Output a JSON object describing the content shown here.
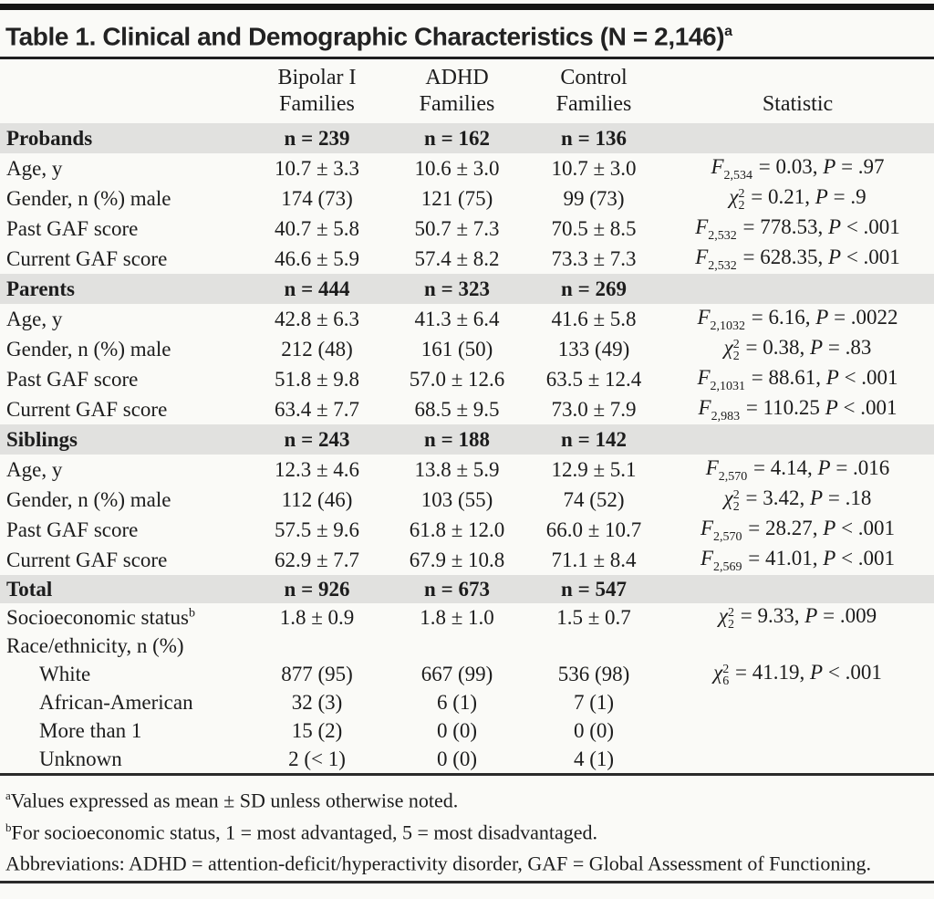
{
  "title": {
    "text": "Table 1. Clinical and Demographic Characteristics (N = 2,146)",
    "sup": "a"
  },
  "header": {
    "col1": [
      "Bipolar I",
      "Families"
    ],
    "col2": [
      "ADHD",
      "Families"
    ],
    "col3": [
      "Control",
      "Families"
    ],
    "col4": "Statistic"
  },
  "sections": [
    {
      "header": {
        "label": "Probands",
        "n1": "n = 239",
        "n2": "n = 162",
        "n3": "n = 136"
      },
      "rows": [
        {
          "label": "Age, y",
          "v1": "10.7 ± 3.3",
          "v2": "10.6 ± 3.0",
          "v3": "10.7 ± 3.0",
          "stat": {
            "sym": "F",
            "sup": "",
            "sub": "2,534",
            "mid": " = 0.03, ",
            "p": "P",
            "pv": " = .97"
          }
        },
        {
          "label": "Gender, n (%) male",
          "v1": "174 (73)",
          "v2": "121 (75)",
          "v3": "99 (73)",
          "stat": {
            "sym": "χ",
            "sup": "2",
            "sub": "2",
            "mid": " = 0.21, ",
            "p": "P",
            "pv": " = .9"
          }
        },
        {
          "label": "Past GAF score",
          "v1": "40.7 ± 5.8",
          "v2": "50.7 ± 7.3",
          "v3": "70.5 ± 8.5",
          "stat": {
            "sym": "F",
            "sup": "",
            "sub": "2,532",
            "mid": " = 778.53, ",
            "p": "P",
            "pv": " < .001"
          }
        },
        {
          "label": "Current GAF score",
          "v1": "46.6 ± 5.9",
          "v2": "57.4 ± 8.2",
          "v3": "73.3 ± 7.3",
          "stat": {
            "sym": "F",
            "sup": "",
            "sub": "2,532",
            "mid": " = 628.35, ",
            "p": "P",
            "pv": " < .001"
          }
        }
      ]
    },
    {
      "header": {
        "label": "Parents",
        "n1": "n = 444",
        "n2": "n = 323",
        "n3": "n = 269"
      },
      "rows": [
        {
          "label": "Age, y",
          "v1": "42.8 ± 6.3",
          "v2": "41.3 ± 6.4",
          "v3": "41.6 ± 5.8",
          "stat": {
            "sym": "F",
            "sup": "",
            "sub": "2,1032",
            "mid": " = 6.16, ",
            "p": "P",
            "pv": " = .0022"
          }
        },
        {
          "label": "Gender, n (%) male",
          "v1": "212 (48)",
          "v2": "161 (50)",
          "v3": "133 (49)",
          "stat": {
            "sym": "χ",
            "sup": "2",
            "sub": "2",
            "mid": " = 0.38, ",
            "p": "P",
            "pv": " = .83"
          }
        },
        {
          "label": "Past GAF score",
          "v1": "51.8 ± 9.8",
          "v2": "57.0 ± 12.6",
          "v3": "63.5 ± 12.4",
          "stat": {
            "sym": "F",
            "sup": "",
            "sub": "2,1031",
            "mid": " = 88.61, ",
            "p": "P",
            "pv": " < .001"
          }
        },
        {
          "label": "Current GAF score",
          "v1": "63.4 ± 7.7",
          "v2": "68.5 ± 9.5",
          "v3": "73.0 ± 7.9",
          "stat": {
            "sym": "F",
            "sup": "",
            "sub": "2,983",
            "mid": " = 110.25 ",
            "p": "P",
            "pv": " < .001"
          }
        }
      ]
    },
    {
      "header": {
        "label": "Siblings",
        "n1": "n = 243",
        "n2": "n = 188",
        "n3": "n = 142"
      },
      "rows": [
        {
          "label": "Age, y",
          "v1": "12.3 ± 4.6",
          "v2": "13.8 ± 5.9",
          "v3": "12.9 ± 5.1",
          "stat": {
            "sym": "F",
            "sup": "",
            "sub": "2,570",
            "mid": " = 4.14, ",
            "p": "P",
            "pv": " = .016"
          }
        },
        {
          "label": "Gender, n (%) male",
          "v1": "112 (46)",
          "v2": "103 (55)",
          "v3": "74 (52)",
          "stat": {
            "sym": "χ",
            "sup": "2",
            "sub": "2",
            "mid": " = 3.42, ",
            "p": "P",
            "pv": " = .18"
          }
        },
        {
          "label": "Past GAF score",
          "v1": "57.5 ± 9.6",
          "v2": "61.8 ± 12.0",
          "v3": "66.0 ± 10.7",
          "stat": {
            "sym": "F",
            "sup": "",
            "sub": "2,570",
            "mid": " = 28.27, ",
            "p": "P",
            "pv": " < .001"
          }
        },
        {
          "label": "Current GAF score",
          "v1": "62.9 ± 7.7",
          "v2": "67.9 ± 10.8",
          "v3": "71.1 ± 8.4",
          "stat": {
            "sym": "F",
            "sup": "",
            "sub": "2,569",
            "mid": " = 41.01, ",
            "p": "P",
            "pv": " < .001"
          }
        }
      ]
    },
    {
      "header": {
        "label": "Total",
        "n1": "n = 926",
        "n2": "n = 673",
        "n3": "n = 547"
      },
      "rows": [
        {
          "label": "Socioeconomic status",
          "label_sup": "b",
          "v1": "1.8 ± 0.9",
          "v2": "1.8 ± 1.0",
          "v3": "1.5 ± 0.7",
          "stat": {
            "sym": "χ",
            "sup": "2",
            "sub": "2",
            "mid": " = 9.33, ",
            "p": "P",
            "pv": " = .009"
          }
        },
        {
          "label": "Race/ethnicity, n (%)",
          "v1": "",
          "v2": "",
          "v3": ""
        },
        {
          "label": "White",
          "v1": "877 (95)",
          "v2": "667 (99)",
          "v3": "536 (98)",
          "stat": {
            "sym": "χ",
            "sup": "2",
            "sub": "6",
            "mid": " = 41.19, ",
            "p": "P",
            "pv": " < .001"
          }
        },
        {
          "label": "African-American",
          "v1": "32 (3)",
          "v2": "6 (1)",
          "v3": "7 (1)"
        },
        {
          "label": "More than 1",
          "v1": "15 (2)",
          "v2": "0 (0)",
          "v3": "0 (0)"
        },
        {
          "label": "Unknown",
          "v1": "2 (< 1)",
          "v2": "0 (0)",
          "v3": "4 (1)"
        }
      ]
    }
  ],
  "footnotes": [
    {
      "sup": "a",
      "text": "Values expressed as mean ± SD unless otherwise noted."
    },
    {
      "sup": "b",
      "text": "For socioeconomic status, 1 = most advantaged, 5 = most disadvantaged."
    },
    {
      "sup": "",
      "text": "Abbreviations: ADHD = attention-deficit/hyperactivity disorder, GAF = Global Assessment of Functioning."
    }
  ]
}
